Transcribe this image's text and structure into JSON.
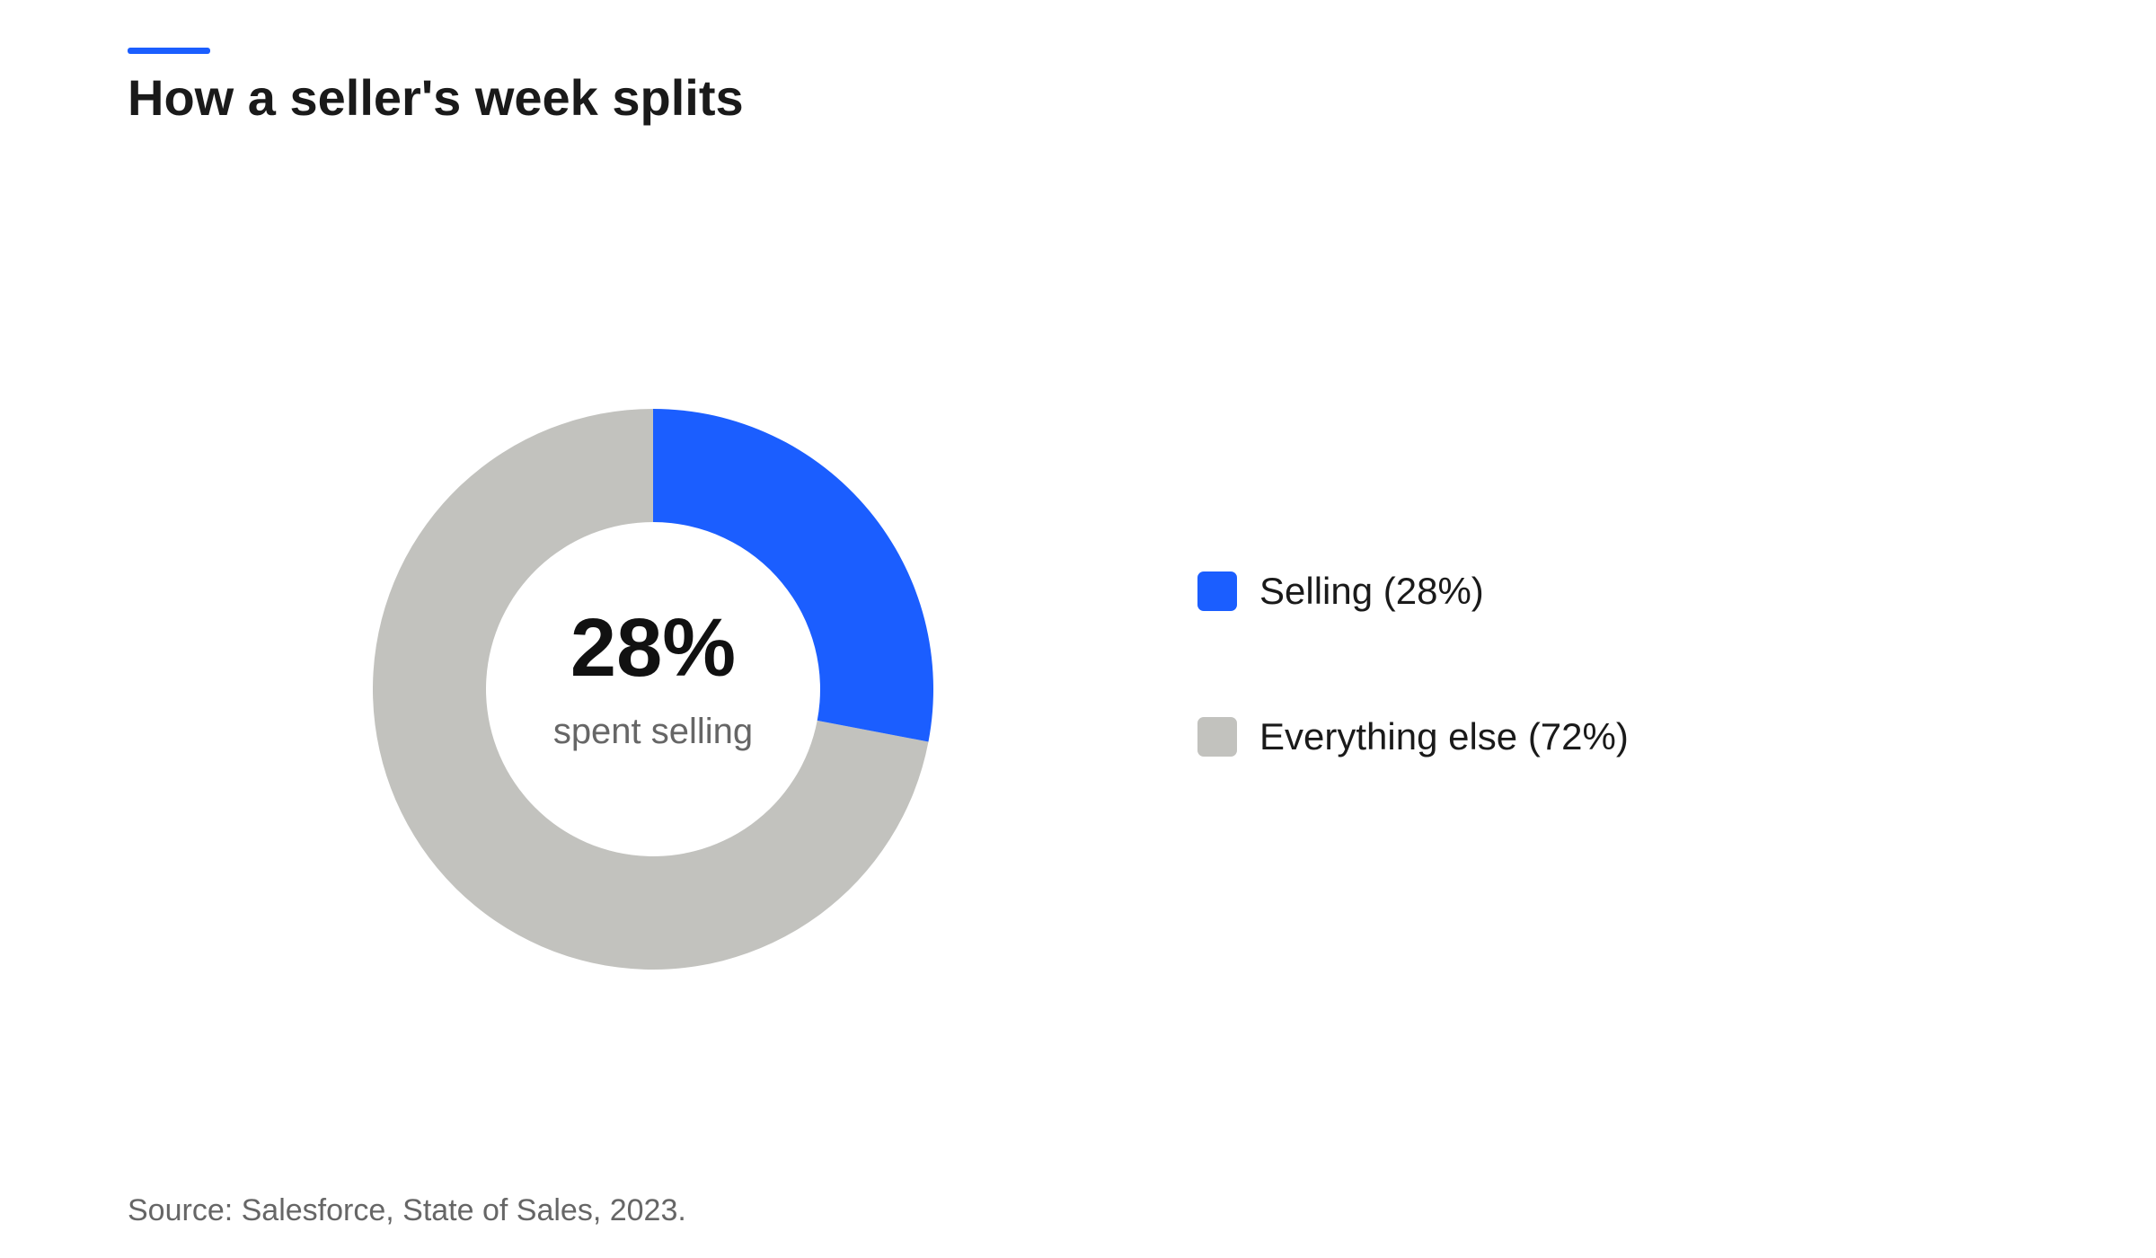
{
  "chart_data": {
    "type": "donut",
    "title": "How a seller's week splits",
    "categories": [
      "Selling (28%)",
      "Everything else (72%)"
    ],
    "values": [
      28,
      72
    ],
    "colors": [
      "#1b5eff",
      "#c2c2be"
    ],
    "center_label": "28%",
    "center_caption": "spent selling",
    "source": "Source: Salesforce, State of Sales, 2023.",
    "legend": "right"
  }
}
